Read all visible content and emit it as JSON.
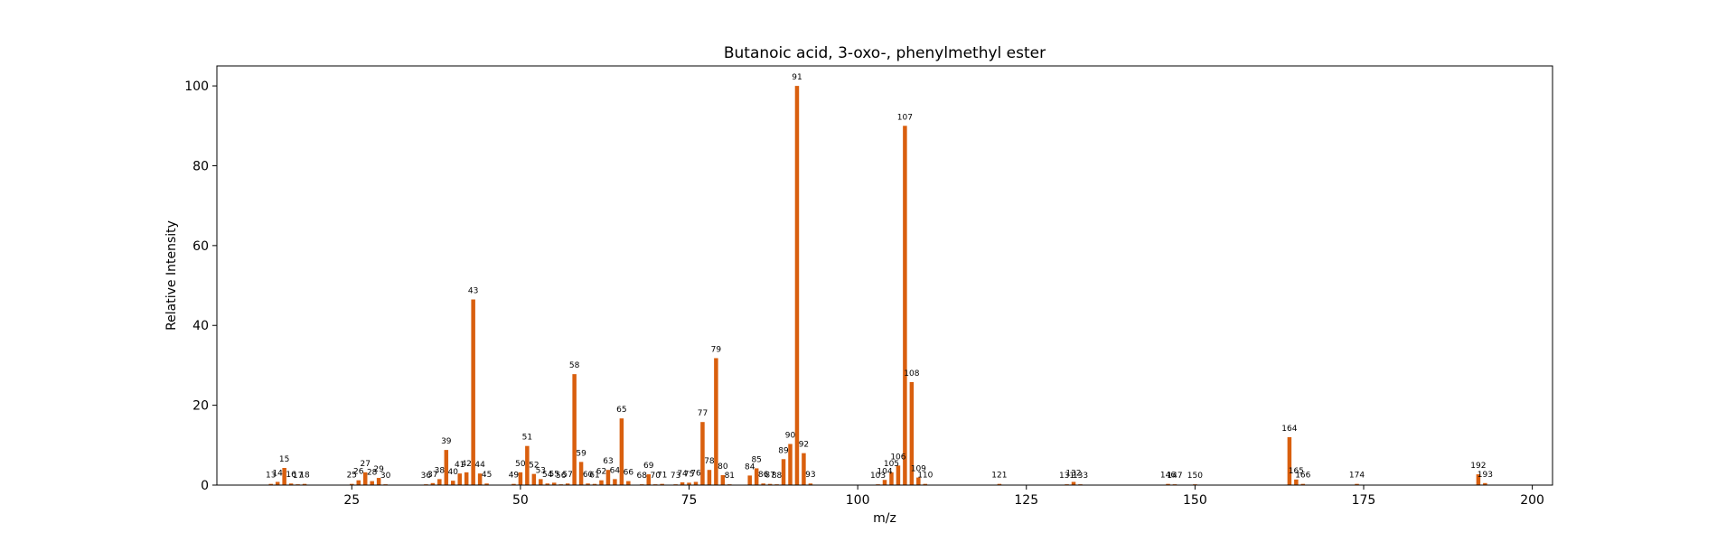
{
  "chart_data": {
    "type": "bar",
    "title": "Butanoic acid, 3-oxo-, phenylmethyl ester",
    "xlabel": "m/z",
    "ylabel": "Relative Intensity",
    "xlim": [
      5,
      203
    ],
    "ylim": [
      0,
      105
    ],
    "xticks": [
      25,
      50,
      75,
      100,
      125,
      150,
      175,
      200
    ],
    "yticks": [
      0,
      20,
      40,
      60,
      80,
      100
    ],
    "grid": false,
    "bar_color": "#d95f0e",
    "x": [
      13,
      14,
      15,
      16,
      17,
      18,
      25,
      26,
      27,
      28,
      29,
      30,
      36,
      37,
      38,
      39,
      40,
      41,
      42,
      43,
      44,
      45,
      49,
      50,
      51,
      52,
      53,
      54,
      55,
      56,
      57,
      58,
      59,
      60,
      61,
      62,
      63,
      64,
      65,
      66,
      68,
      69,
      70,
      71,
      73,
      74,
      75,
      76,
      77,
      78,
      79,
      80,
      81,
      84,
      85,
      86,
      87,
      88,
      89,
      90,
      91,
      92,
      93,
      103,
      104,
      105,
      106,
      107,
      108,
      109,
      110,
      121,
      131,
      132,
      133,
      146,
      147,
      150,
      164,
      165,
      166,
      174,
      192,
      193
    ],
    "values": [
      0.3,
      0.8,
      4.3,
      0.4,
      0.2,
      0.3,
      0.3,
      1.2,
      3.2,
      1.0,
      1.8,
      0.2,
      0.2,
      0.5,
      1.5,
      8.8,
      1.1,
      2.9,
      3.2,
      46.5,
      2.9,
      0.4,
      0.3,
      3.2,
      9.8,
      2.8,
      1.5,
      0.4,
      0.6,
      0.2,
      0.4,
      27.8,
      5.8,
      0.4,
      0.3,
      1.2,
      3.8,
      1.5,
      16.7,
      1.0,
      0.2,
      2.7,
      0.2,
      0.3,
      0.2,
      0.7,
      0.6,
      0.8,
      15.8,
      3.8,
      31.8,
      2.5,
      0.2,
      2.4,
      4.2,
      0.4,
      0.3,
      0.2,
      6.5,
      10.3,
      100,
      8.0,
      0.4,
      0.2,
      1.3,
      3.2,
      4.9,
      90,
      25.8,
      1.9,
      0.3,
      0.3,
      0.2,
      0.8,
      0.2,
      0.3,
      0.2,
      0.2,
      12.0,
      1.4,
      0.3,
      0.3,
      2.7,
      0.5
    ],
    "labels": [
      "13",
      "14",
      "15",
      "16",
      "17",
      "18",
      "25",
      "26",
      "27",
      "28",
      "29",
      "30",
      "36",
      "37",
      "38",
      "39",
      "40",
      "41",
      "42",
      "43",
      "44",
      "45",
      "49",
      "50",
      "51",
      "52",
      "53",
      "54",
      "55",
      "56",
      "57",
      "58",
      "59",
      "60",
      "61",
      "62",
      "63",
      "64",
      "65",
      "66",
      "68",
      "69",
      "70",
      "71",
      "73",
      "74",
      "75",
      "76",
      "77",
      "78",
      "79",
      "80",
      "81",
      "84",
      "85",
      "86",
      "87",
      "88",
      "89",
      "90",
      "91",
      "92",
      "93",
      "103",
      "104",
      "105",
      "106",
      "107",
      "108",
      "109",
      "110",
      "121",
      "131",
      "132",
      "133",
      "146",
      "147",
      "150",
      "164",
      "165",
      "166",
      "174",
      "192",
      "193"
    ]
  }
}
